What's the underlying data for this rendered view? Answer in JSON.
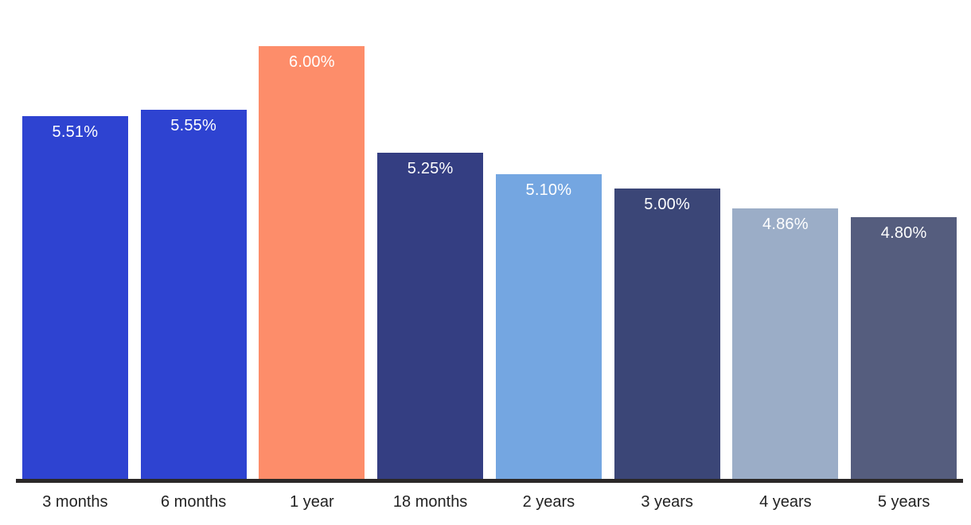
{
  "chart_data": {
    "type": "bar",
    "title": "",
    "xlabel": "",
    "ylabel": "",
    "categories": [
      "3 months",
      "6 months",
      "1 year",
      "18 months",
      "2 years",
      "3 years",
      "4 years",
      "5 years"
    ],
    "values": [
      5.51,
      5.55,
      6.0,
      5.25,
      5.1,
      5.0,
      4.86,
      4.8
    ],
    "value_labels": [
      "5.51%",
      "5.55%",
      "6.00%",
      "5.25%",
      "5.10%",
      "5.00%",
      "4.86%",
      "4.80%"
    ],
    "bar_colors": [
      "#2e43d1",
      "#2e43d1",
      "#fd8d6a",
      "#343e82",
      "#74a6e1",
      "#3b4677",
      "#9badc7",
      "#555d7e"
    ],
    "ylim": [
      2.97,
      6.32
    ],
    "grid": false,
    "legend": false,
    "background_color": "#ffffff",
    "value_label_color": "#ffffff",
    "axis_line_color": "#2b2828",
    "tick_label_color": "#222222"
  }
}
